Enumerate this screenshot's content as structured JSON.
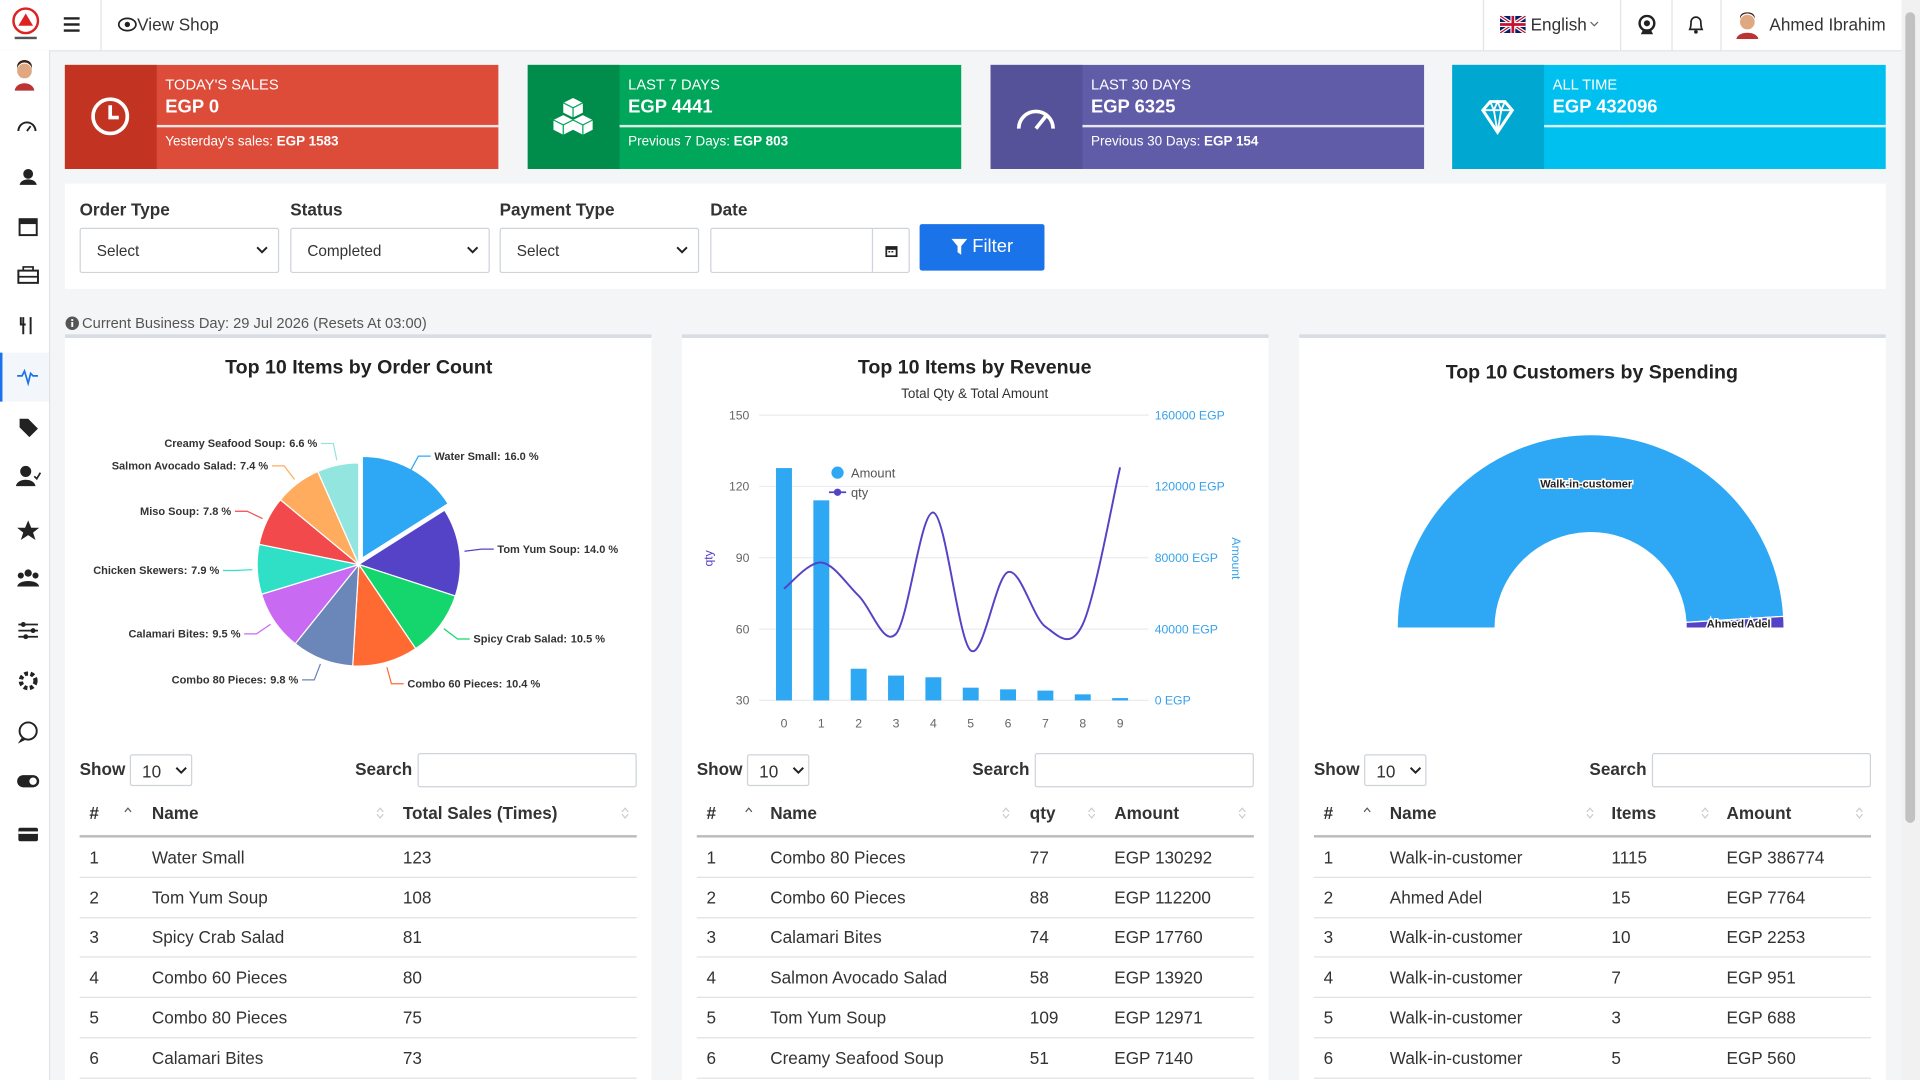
{
  "header": {
    "view_shop": "View Shop",
    "language": "English",
    "user": "Ahmed Ibrahim"
  },
  "cards": [
    {
      "label": "TODAY'S SALES",
      "value": "EGP 0",
      "footer_label": "Yesterday's sales:",
      "footer_value": "EGP 1583"
    },
    {
      "label": "LAST 7 DAYS",
      "value": "EGP 4441",
      "footer_label": "Previous 7 Days:",
      "footer_value": "EGP 803"
    },
    {
      "label": "LAST 30 DAYS",
      "value": "EGP 6325",
      "footer_label": "Previous 30 Days:",
      "footer_value": "EGP 154"
    },
    {
      "label": "ALL TIME",
      "value": "EGP 432096"
    }
  ],
  "filters": [
    {
      "label": "Order Type",
      "value": "Select"
    },
    {
      "label": "Status",
      "value": "Completed"
    },
    {
      "label": "Payment Type",
      "value": "Select"
    },
    {
      "label": "Date"
    }
  ],
  "filter_button": "Filter",
  "business_day": "Current Business Day: 29 Jul 2026 (Resets At 03:00)",
  "chart_data": [
    {
      "type": "pie",
      "title": "Top 10 Items by Order Count",
      "categories": [
        "Water Small:",
        "Tom Yum Soup:",
        "Spicy Crab Salad:",
        "Combo 60 Pieces:",
        "Combo 80 Pieces:",
        "Calamari Bites:",
        "Chicken Skewers:",
        "Miso Soup:",
        "Salmon Avocado Salad:",
        "Creamy Seafood Soup:"
      ],
      "values": [
        16.0,
        14.0,
        10.5,
        10.4,
        9.8,
        9.5,
        7.9,
        7.8,
        7.4,
        6.6
      ],
      "value_labels": [
        "16.0 %",
        "14.0 %",
        "10.5 %",
        "10.4 %",
        "9.8 %",
        "9.5 %",
        "7.9 %",
        "7.8 %",
        "7.4 %",
        "6.6 %"
      ],
      "colors": [
        "#2ea8f5",
        "#5443c6",
        "#14d66c",
        "#ff6a33",
        "#6b86b8",
        "#c96af2",
        "#2fe0c6",
        "#f24a4c",
        "#ffac5e",
        "#93e5df"
      ]
    },
    {
      "type": "combo",
      "title": "Top 10 Items by Revenue",
      "subtitle": "Total Qty & Total Amount",
      "categories": [
        "0",
        "1",
        "2",
        "3",
        "4",
        "5",
        "6",
        "7",
        "8",
        "9"
      ],
      "series": [
        {
          "name": "Amount",
          "kind": "bar",
          "axis": "y2",
          "color": "#2ea8f2",
          "values": [
            130292,
            112200,
            17760,
            13920,
            12971,
            7140,
            6200,
            5500,
            3400,
            1300
          ]
        },
        {
          "name": "qty",
          "kind": "line",
          "color": "#5443c6",
          "values": [
            77,
            88,
            74,
            58,
            109,
            51,
            84,
            61,
            62,
            128
          ]
        }
      ],
      "ylabel": "qty",
      "y2label": "Amount",
      "ylim": [
        30,
        150
      ],
      "yticks": [
        30,
        60,
        90,
        120,
        150
      ],
      "y2lim": [
        0,
        160000
      ],
      "y2ticks": [
        {
          "value": 0,
          "label": "0 EGP"
        },
        {
          "value": 40000,
          "label": "40000 EGP"
        },
        {
          "value": 80000,
          "label": "80000 EGP"
        },
        {
          "value": 120000,
          "label": "120000 EGP"
        },
        {
          "value": 160000,
          "label": "160000 EGP"
        }
      ],
      "grid": true
    },
    {
      "type": "halfdonut",
      "title": "Top 10 Customers by Spending",
      "categories": [
        "Walk-in-customer",
        "Ahmed Adel"
      ],
      "values": [
        391226,
        7764
      ],
      "colors": [
        "#2ea8f5",
        "#5443c6"
      ]
    }
  ],
  "tables": [
    {
      "show_label": "Show",
      "page_size": "10",
      "search_label": "Search",
      "columns": [
        "#",
        "Name",
        "Total Sales (Times)"
      ],
      "rows": [
        [
          "1",
          "Water Small",
          "123"
        ],
        [
          "2",
          "Tom Yum Soup",
          "108"
        ],
        [
          "3",
          "Spicy Crab Salad",
          "81"
        ],
        [
          "4",
          "Combo 60 Pieces",
          "80"
        ],
        [
          "5",
          "Combo 80 Pieces",
          "75"
        ],
        [
          "6",
          "Calamari Bites",
          "73"
        ]
      ]
    },
    {
      "show_label": "Show",
      "page_size": "10",
      "search_label": "Search",
      "columns": [
        "#",
        "Name",
        "qty",
        "Amount"
      ],
      "rows": [
        [
          "1",
          "Combo 80 Pieces",
          "77",
          "EGP 130292"
        ],
        [
          "2",
          "Combo 60 Pieces",
          "88",
          "EGP 112200"
        ],
        [
          "3",
          "Calamari Bites",
          "74",
          "EGP 17760"
        ],
        [
          "4",
          "Salmon Avocado Salad",
          "58",
          "EGP 13920"
        ],
        [
          "5",
          "Tom Yum Soup",
          "109",
          "EGP 12971"
        ],
        [
          "6",
          "Creamy Seafood Soup",
          "51",
          "EGP 7140"
        ]
      ]
    },
    {
      "show_label": "Show",
      "page_size": "10",
      "search_label": "Search",
      "columns": [
        "#",
        "Name",
        "Items",
        "Amount"
      ],
      "rows": [
        [
          "1",
          "Walk-in-customer",
          "1115",
          "EGP 386774"
        ],
        [
          "2",
          "Ahmed Adel",
          "15",
          "EGP 7764"
        ],
        [
          "3",
          "Walk-in-customer",
          "10",
          "EGP 2253"
        ],
        [
          "4",
          "Walk-in-customer",
          "7",
          "EGP 951"
        ],
        [
          "5",
          "Walk-in-customer",
          "3",
          "EGP 688"
        ],
        [
          "6",
          "Walk-in-customer",
          "5",
          "EGP 560"
        ]
      ]
    }
  ]
}
